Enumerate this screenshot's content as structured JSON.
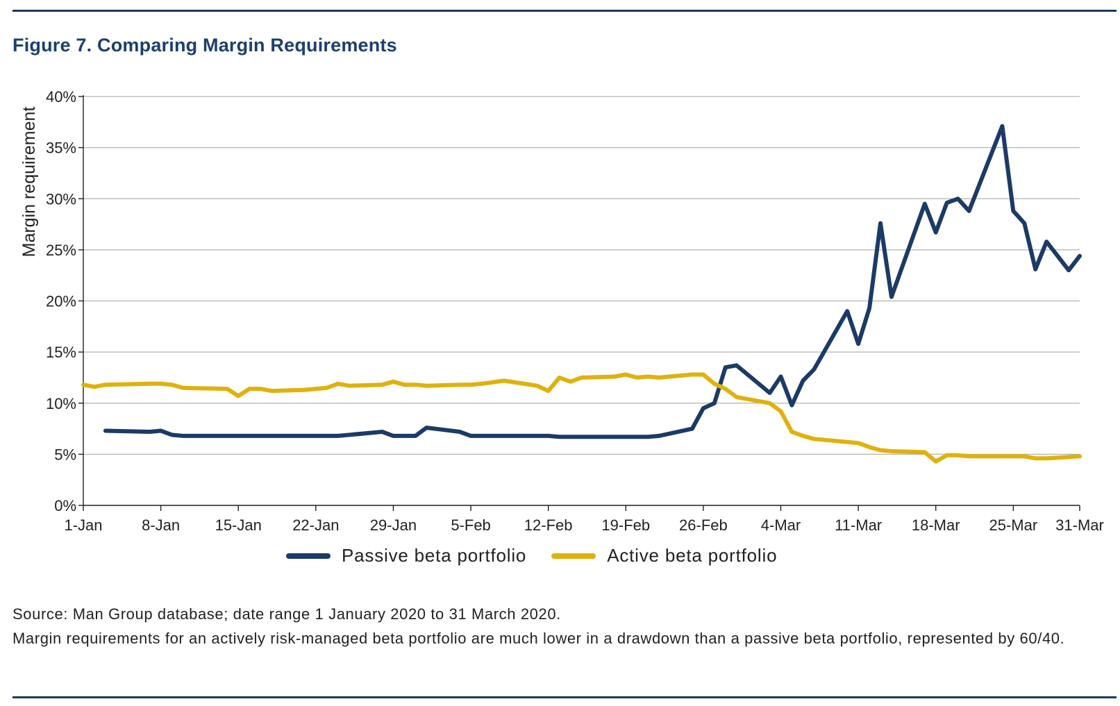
{
  "figure_title": "Figure 7. Comparing Margin Requirements",
  "source_line": "Source: Man Group database; date range 1 January 2020 to 31 March 2020.",
  "note_line": "Margin requirements for an actively risk-managed beta portfolio are much lower in a drawdown than a passive beta portfolio, represented by 60/40.",
  "legend": {
    "passive": "Passive beta portfolio",
    "active": "Active beta portfolio"
  },
  "colors": {
    "passive": "#1c3a66",
    "active": "#e0b10d",
    "grid": "#b3b3b3",
    "axis": "#231f20",
    "title": "#1c3f6e"
  },
  "chart_data": {
    "type": "line",
    "xlabel": "",
    "ylabel": "Margin requirement",
    "ylim": [
      0,
      40
    ],
    "y_ticks": [
      "0%",
      "5%",
      "10%",
      "15%",
      "20%",
      "25%",
      "30%",
      "35%",
      "40%"
    ],
    "x_range_days": "1-Jan to 31-Mar (2020)",
    "x_tick_labels": [
      "1-Jan",
      "8-Jan",
      "15-Jan",
      "22-Jan",
      "29-Jan",
      "5-Feb",
      "12-Feb",
      "19-Feb",
      "26-Feb",
      "4-Mar",
      "11-Mar",
      "18-Mar",
      "25-Mar",
      "31-Mar"
    ],
    "grid": "horizontal",
    "legend_position": "bottom",
    "series": [
      {
        "name": "Passive beta portfolio",
        "points": [
          [
            "3-Jan",
            7.3
          ],
          [
            "7-Jan",
            7.2
          ],
          [
            "8-Jan",
            7.3
          ],
          [
            "9-Jan",
            6.9
          ],
          [
            "10-Jan",
            6.8
          ],
          [
            "14-Jan",
            6.8
          ],
          [
            "15-Jan",
            6.8
          ],
          [
            "16-Jan",
            6.8
          ],
          [
            "17-Jan",
            6.8
          ],
          [
            "21-Jan",
            6.8
          ],
          [
            "22-Jan",
            6.8
          ],
          [
            "23-Jan",
            6.8
          ],
          [
            "24-Jan",
            6.8
          ],
          [
            "28-Jan",
            7.2
          ],
          [
            "29-Jan",
            6.8
          ],
          [
            "30-Jan",
            6.8
          ],
          [
            "31-Jan",
            6.8
          ],
          [
            "1-Feb",
            7.6
          ],
          [
            "4-Feb",
            7.2
          ],
          [
            "5-Feb",
            6.8
          ],
          [
            "6-Feb",
            6.8
          ],
          [
            "7-Feb",
            6.8
          ],
          [
            "11-Feb",
            6.8
          ],
          [
            "12-Feb",
            6.8
          ],
          [
            "13-Feb",
            6.7
          ],
          [
            "14-Feb",
            6.7
          ],
          [
            "18-Feb",
            6.7
          ],
          [
            "19-Feb",
            6.7
          ],
          [
            "20-Feb",
            6.7
          ],
          [
            "21-Feb",
            6.7
          ],
          [
            "22-Feb",
            6.8
          ],
          [
            "25-Feb",
            7.5
          ],
          [
            "26-Feb",
            9.5
          ],
          [
            "27-Feb",
            10.0
          ],
          [
            "28-Feb",
            13.5
          ],
          [
            "29-Feb",
            13.7
          ],
          [
            "3-Mar",
            11.0
          ],
          [
            "4-Mar",
            12.6
          ],
          [
            "5-Mar",
            9.8
          ],
          [
            "6-Mar",
            12.2
          ],
          [
            "7-Mar",
            13.3
          ],
          [
            "10-Mar",
            19.0
          ],
          [
            "11-Mar",
            15.8
          ],
          [
            "12-Mar",
            19.3
          ],
          [
            "13-Mar",
            27.6
          ],
          [
            "14-Mar",
            20.4
          ],
          [
            "17-Mar",
            29.5
          ],
          [
            "18-Mar",
            26.7
          ],
          [
            "19-Mar",
            29.6
          ],
          [
            "20-Mar",
            30.0
          ],
          [
            "21-Mar",
            28.8
          ],
          [
            "24-Mar",
            37.1
          ],
          [
            "25-Mar",
            28.8
          ],
          [
            "26-Mar",
            27.6
          ],
          [
            "27-Mar",
            23.1
          ],
          [
            "28-Mar",
            25.8
          ],
          [
            "30-Mar",
            23.0
          ],
          [
            "31-Mar",
            24.4
          ]
        ]
      },
      {
        "name": "Active beta portfolio",
        "points": [
          [
            "1-Jan",
            11.8
          ],
          [
            "2-Jan",
            11.6
          ],
          [
            "3-Jan",
            11.8
          ],
          [
            "7-Jan",
            11.9
          ],
          [
            "8-Jan",
            11.9
          ],
          [
            "9-Jan",
            11.8
          ],
          [
            "10-Jan",
            11.5
          ],
          [
            "14-Jan",
            11.4
          ],
          [
            "15-Jan",
            10.7
          ],
          [
            "16-Jan",
            11.4
          ],
          [
            "17-Jan",
            11.4
          ],
          [
            "18-Jan",
            11.2
          ],
          [
            "21-Jan",
            11.3
          ],
          [
            "22-Jan",
            11.4
          ],
          [
            "23-Jan",
            11.5
          ],
          [
            "24-Jan",
            11.9
          ],
          [
            "25-Jan",
            11.7
          ],
          [
            "28-Jan",
            11.8
          ],
          [
            "29-Jan",
            12.1
          ],
          [
            "30-Jan",
            11.8
          ],
          [
            "31-Jan",
            11.8
          ],
          [
            "1-Feb",
            11.7
          ],
          [
            "4-Feb",
            11.8
          ],
          [
            "5-Feb",
            11.8
          ],
          [
            "6-Feb",
            11.9
          ],
          [
            "8-Feb",
            12.2
          ],
          [
            "11-Feb",
            11.7
          ],
          [
            "12-Feb",
            11.2
          ],
          [
            "13-Feb",
            12.5
          ],
          [
            "14-Feb",
            12.1
          ],
          [
            "15-Feb",
            12.5
          ],
          [
            "18-Feb",
            12.6
          ],
          [
            "19-Feb",
            12.8
          ],
          [
            "20-Feb",
            12.5
          ],
          [
            "21-Feb",
            12.6
          ],
          [
            "22-Feb",
            12.5
          ],
          [
            "25-Feb",
            12.8
          ],
          [
            "26-Feb",
            12.8
          ],
          [
            "27-Feb",
            11.9
          ],
          [
            "28-Feb",
            11.4
          ],
          [
            "29-Feb",
            10.6
          ],
          [
            "3-Mar",
            10.0
          ],
          [
            "4-Mar",
            9.2
          ],
          [
            "5-Mar",
            7.2
          ],
          [
            "6-Mar",
            6.8
          ],
          [
            "7-Mar",
            6.5
          ],
          [
            "10-Mar",
            6.2
          ],
          [
            "11-Mar",
            6.1
          ],
          [
            "12-Mar",
            5.7
          ],
          [
            "13-Mar",
            5.4
          ],
          [
            "14-Mar",
            5.3
          ],
          [
            "17-Mar",
            5.2
          ],
          [
            "18-Mar",
            4.3
          ],
          [
            "19-Mar",
            4.9
          ],
          [
            "20-Mar",
            4.9
          ],
          [
            "21-Mar",
            4.8
          ],
          [
            "24-Mar",
            4.8
          ],
          [
            "25-Mar",
            4.8
          ],
          [
            "26-Mar",
            4.8
          ],
          [
            "27-Mar",
            4.6
          ],
          [
            "28-Mar",
            4.6
          ],
          [
            "31-Mar",
            4.8
          ]
        ]
      }
    ]
  }
}
